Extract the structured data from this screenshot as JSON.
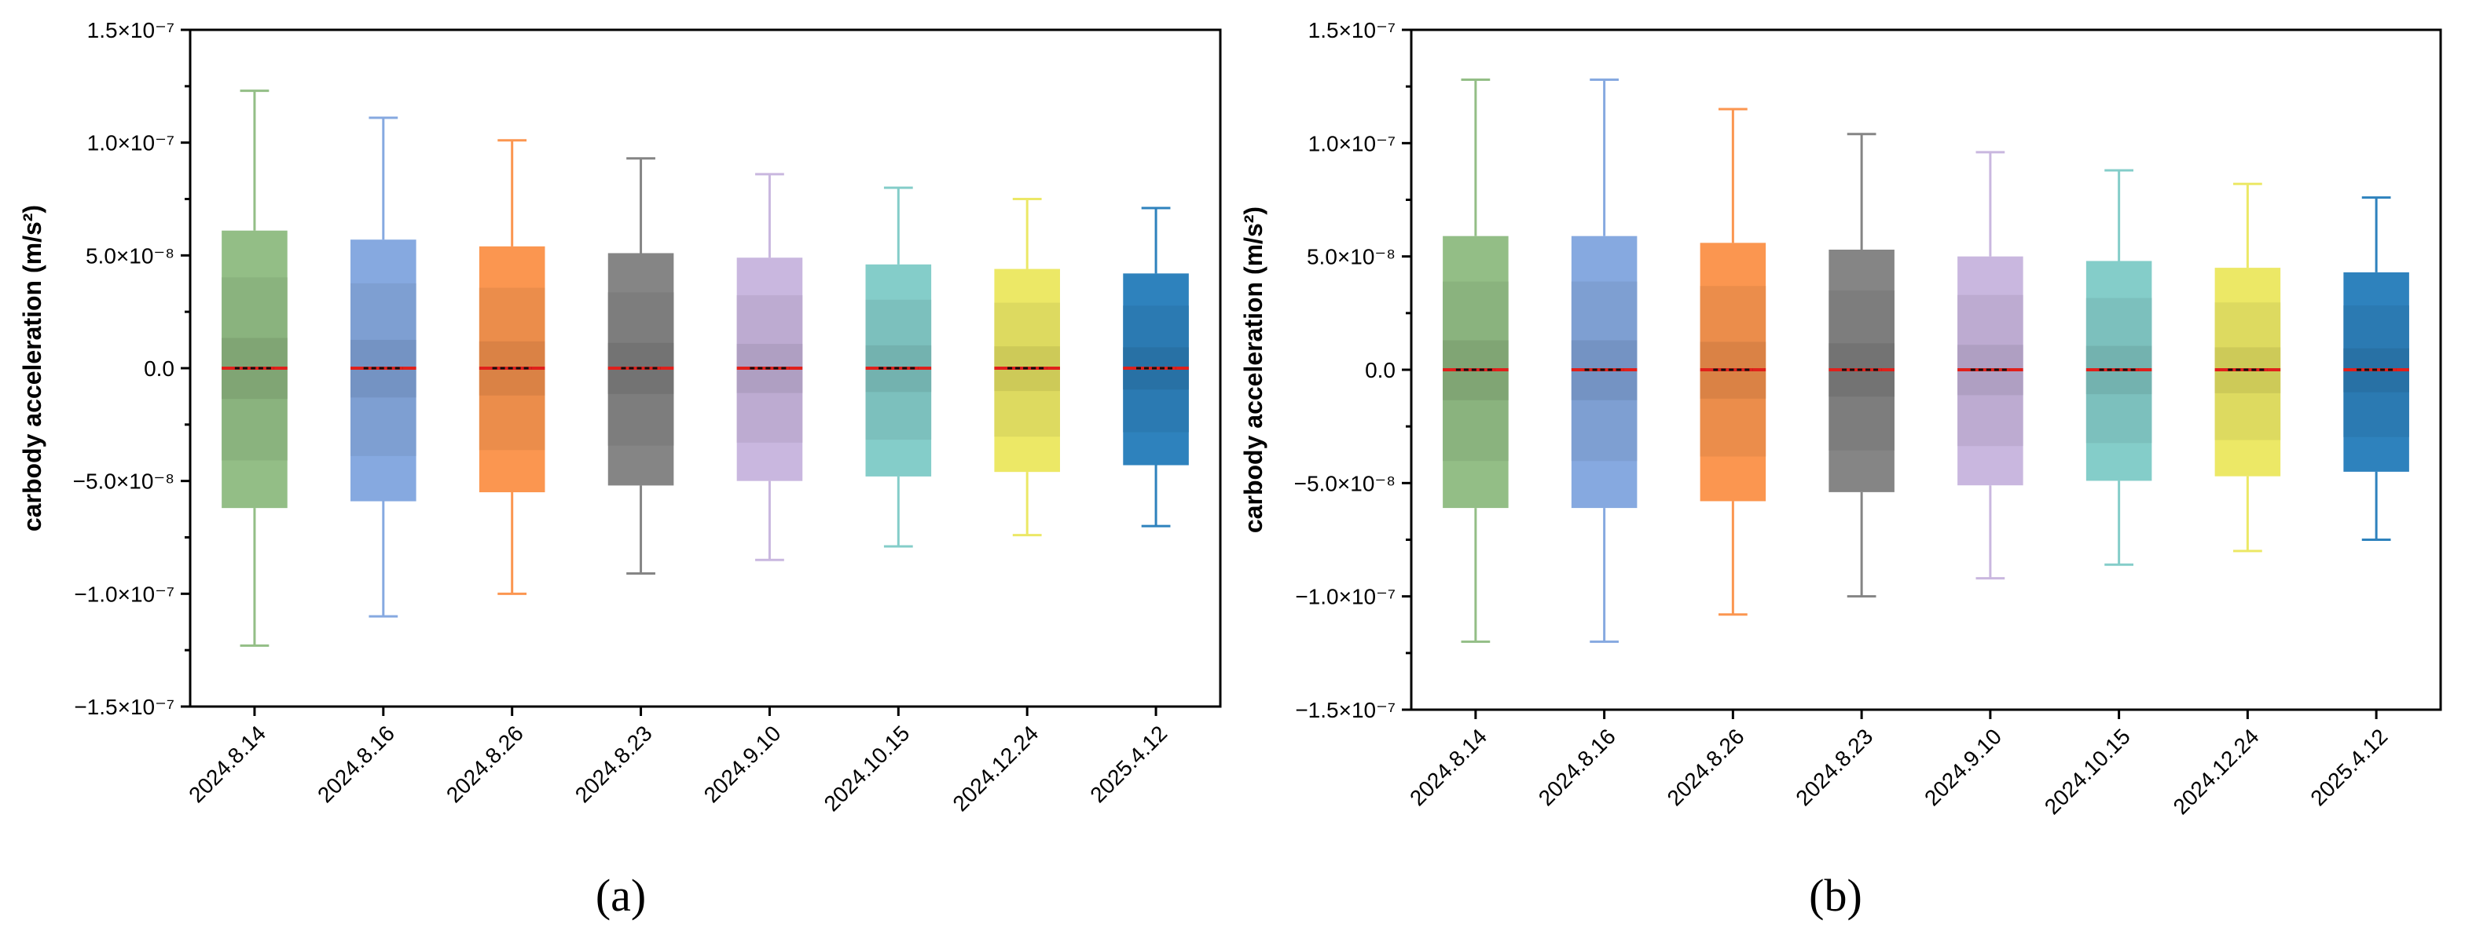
{
  "chart_data": [
    {
      "type": "box",
      "panel_label": "(a)",
      "panel_letter": "a",
      "ylabel": "carbody acceleration (m/s²)",
      "ylim": [
        -1.5e-07,
        1.5e-07
      ],
      "yticks": [
        {
          "value": 1.5e-07,
          "label": "1.5×10⁻⁷"
        },
        {
          "value": 1e-07,
          "label": "1.0×10⁻⁷"
        },
        {
          "value": 5e-08,
          "label": "5.0×10⁻⁸"
        },
        {
          "value": 0,
          "label": "0.0"
        },
        {
          "value": -5e-08,
          "label": "−5.0×10⁻⁸"
        },
        {
          "value": -1e-07,
          "label": "−1.0×10⁻⁷"
        },
        {
          "value": -1.5e-07,
          "label": "−1.5×10⁻⁷"
        }
      ],
      "categories": [
        "2024.8.14",
        "2024.8.16",
        "2024.8.26",
        "2024.8.23",
        "2024.9.10",
        "2024.10.15",
        "2024.12.24",
        "2025.4.12"
      ],
      "colors": [
        "#93be86",
        "#86a9e0",
        "#fb9650",
        "#858585",
        "#c9b7df",
        "#84cdc9",
        "#ece866",
        "#2e82bd"
      ],
      "boxes": [
        {
          "whisker_high": 1.23e-07,
          "q3": 6.1e-08,
          "median": 0.0,
          "q1": -6.2e-08,
          "whisker_low": -1.23e-07
        },
        {
          "whisker_high": 1.11e-07,
          "q3": 5.7e-08,
          "median": 0.0,
          "q1": -5.9e-08,
          "whisker_low": -1.1e-07
        },
        {
          "whisker_high": 1.01e-07,
          "q3": 5.4e-08,
          "median": 0.0,
          "q1": -5.5e-08,
          "whisker_low": -1e-07
        },
        {
          "whisker_high": 9.3e-08,
          "q3": 5.1e-08,
          "median": 0.0,
          "q1": -5.2e-08,
          "whisker_low": -9.1e-08
        },
        {
          "whisker_high": 8.6e-08,
          "q3": 4.9e-08,
          "median": 0.0,
          "q1": -5e-08,
          "whisker_low": -8.5e-08
        },
        {
          "whisker_high": 8e-08,
          "q3": 4.6e-08,
          "median": 0.0,
          "q1": -4.8e-08,
          "whisker_low": -7.9e-08
        },
        {
          "whisker_high": 7.5e-08,
          "q3": 4.4e-08,
          "median": 0.0,
          "q1": -4.6e-08,
          "whisker_low": -7.4e-08
        },
        {
          "whisker_high": 7.1e-08,
          "q3": 4.2e-08,
          "median": 0.0,
          "q1": -4.3e-08,
          "whisker_low": -7e-08
        }
      ]
    },
    {
      "type": "box",
      "panel_label": "(b)",
      "panel_letter": "b",
      "ylabel": "carbody acceleration (m/s²)",
      "ylim": [
        -1.5e-07,
        1.5e-07
      ],
      "yticks": [
        {
          "value": 1.5e-07,
          "label": "1.5×10⁻⁷"
        },
        {
          "value": 1e-07,
          "label": "1.0×10⁻⁷"
        },
        {
          "value": 5e-08,
          "label": "5.0×10⁻⁸"
        },
        {
          "value": 0,
          "label": "0.0"
        },
        {
          "value": -5e-08,
          "label": "−5.0×10⁻⁸"
        },
        {
          "value": -1e-07,
          "label": "−1.0×10⁻⁷"
        },
        {
          "value": -1.5e-07,
          "label": "−1.5×10⁻⁷"
        }
      ],
      "categories": [
        "2024.8.14",
        "2024.8.16",
        "2024.8.26",
        "2024.8.23",
        "2024.9.10",
        "2024.10.15",
        "2024.12.24",
        "2025.4.12"
      ],
      "colors": [
        "#93be86",
        "#86a9e0",
        "#fb9650",
        "#858585",
        "#c9b7df",
        "#84cdc9",
        "#ece866",
        "#2e82bd"
      ],
      "boxes": [
        {
          "whisker_high": 1.28e-07,
          "q3": 5.9e-08,
          "median": 0.0,
          "q1": -6.1e-08,
          "whisker_low": -1.2e-07
        },
        {
          "whisker_high": 1.28e-07,
          "q3": 5.9e-08,
          "median": 0.0,
          "q1": -6.1e-08,
          "whisker_low": -1.2e-07
        },
        {
          "whisker_high": 1.15e-07,
          "q3": 5.6e-08,
          "median": 0.0,
          "q1": -5.8e-08,
          "whisker_low": -1.08e-07
        },
        {
          "whisker_high": 1.04e-07,
          "q3": 5.3e-08,
          "median": 0.0,
          "q1": -5.4e-08,
          "whisker_low": -1e-07
        },
        {
          "whisker_high": 9.6e-08,
          "q3": 5e-08,
          "median": 0.0,
          "q1": -5.1e-08,
          "whisker_low": -9.2e-08
        },
        {
          "whisker_high": 8.8e-08,
          "q3": 4.8e-08,
          "median": 0.0,
          "q1": -4.9e-08,
          "whisker_low": -8.6e-08
        },
        {
          "whisker_high": 8.2e-08,
          "q3": 4.5e-08,
          "median": 0.0,
          "q1": -4.7e-08,
          "whisker_low": -8e-08
        },
        {
          "whisker_high": 7.6e-08,
          "q3": 4.3e-08,
          "median": 0.0,
          "q1": -4.5e-08,
          "whisker_low": -7.5e-08
        }
      ]
    }
  ]
}
